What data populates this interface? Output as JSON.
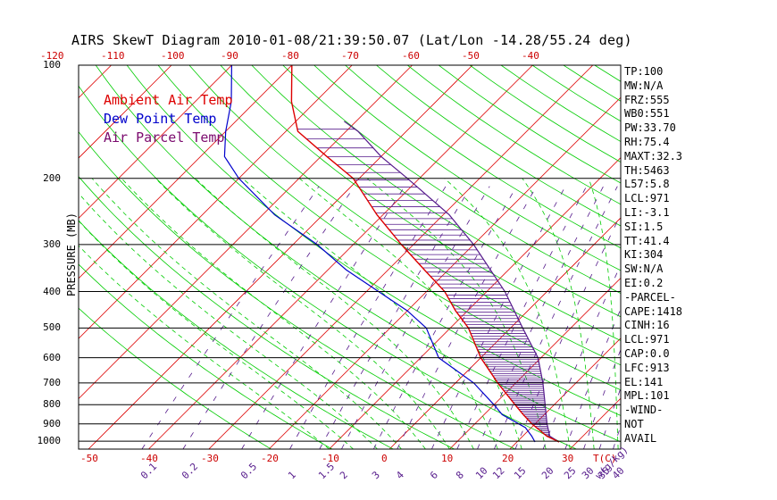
{
  "title": "AIRS SkewT Diagram 2010-01-08/21:39:50.07 (Lat/Lon -14.28/55.24 deg)",
  "y_axis_label": "PRESSURE (MB)",
  "legend": [
    {
      "label": "Ambient Air Temp",
      "color": "#dd0000"
    },
    {
      "label": "Dew Point Temp",
      "color": "#0000cc"
    },
    {
      "label": "Air Parcel Temp",
      "color": "#7b0a6e"
    }
  ],
  "indices": [
    "TP:100",
    "MW:N/A",
    "FRZ:555",
    "WB0:551",
    "PW:33.70",
    "RH:75.4",
    "MAXT:32.3",
    "TH:5463",
    "L57:5.8",
    "LCL:971",
    "LI:-3.1",
    "SI:1.5",
    "TT:41.4",
    "KI:304",
    "SW:N/A",
    "EI:0.2",
    "-PARCEL-",
    "CAPE:1418",
    "CINH:16",
    "LCL:971",
    "CAP:0.0",
    "LFC:913",
    "EL:141",
    "MPL:101",
    "-WIND-",
    "NOT",
    "AVAIL"
  ],
  "colors": {
    "dry_adiabat": "#00cc00",
    "moist_adiabat": "#00cc00",
    "isotherm": "#dd0000",
    "mixing_ratio": "#551a8b",
    "isobar": "#000000",
    "ambient": "#dd0000",
    "dewpoint": "#0000cc",
    "parcel": "#551a8b",
    "cape_hatch": "#551a8b"
  },
  "chart_data": {
    "type": "skew-t",
    "pressure_axis": {
      "label": "PRESSURE (MB)",
      "ticks": [
        100,
        200,
        300,
        400,
        500,
        600,
        700,
        800,
        900,
        1000
      ],
      "range": [
        1050,
        100
      ],
      "scale": "log"
    },
    "temp_axis_bottom": {
      "ticks": [
        -50,
        -40,
        -30,
        -20,
        -10,
        0,
        10,
        20,
        30
      ],
      "unit_label": "T(C)"
    },
    "temp_axis_top": {
      "ticks": [
        -120,
        -110,
        -100,
        -90,
        -80,
        -70,
        -60,
        -50,
        -40
      ]
    },
    "mixing_ratio_ticks": {
      "labels": [
        "0.1",
        "0.2",
        "0.5",
        "1",
        "1.5",
        "2",
        "3",
        "4",
        "6",
        "8",
        "10",
        "12",
        "15",
        "20",
        "25",
        "30",
        "35",
        "40"
      ],
      "values": [
        0.1,
        0.2,
        0.5,
        1,
        1.5,
        2,
        3,
        4,
        6,
        8,
        10,
        12,
        15,
        20,
        25,
        30,
        35,
        40
      ],
      "unit_label": "w(g/kg)"
    },
    "series": [
      {
        "name": "Ambient Air Temp",
        "points": [
          [
            1005,
            27
          ],
          [
            970,
            24
          ],
          [
            900,
            19.5
          ],
          [
            850,
            16.5
          ],
          [
            800,
            13.5
          ],
          [
            700,
            7
          ],
          [
            600,
            0
          ],
          [
            500,
            -7
          ],
          [
            450,
            -12
          ],
          [
            400,
            -17
          ],
          [
            350,
            -24
          ],
          [
            300,
            -32
          ],
          [
            250,
            -41
          ],
          [
            200,
            -51
          ],
          [
            175,
            -59
          ],
          [
            150,
            -68
          ],
          [
            125,
            -74
          ],
          [
            100,
            -80
          ]
        ]
      },
      {
        "name": "Dew Point Temp",
        "points": [
          [
            1005,
            23
          ],
          [
            970,
            21.5
          ],
          [
            920,
            19
          ],
          [
            850,
            13
          ],
          [
            800,
            10
          ],
          [
            700,
            3
          ],
          [
            600,
            -7
          ],
          [
            500,
            -14
          ],
          [
            450,
            -20
          ],
          [
            400,
            -28
          ],
          [
            350,
            -37
          ],
          [
            300,
            -46
          ],
          [
            250,
            -58
          ],
          [
            200,
            -70
          ],
          [
            175,
            -76
          ],
          [
            150,
            -80
          ],
          [
            125,
            -84
          ],
          [
            100,
            -90
          ]
        ]
      },
      {
        "name": "Air Parcel Temp",
        "points": [
          [
            1005,
            27
          ],
          [
            970,
            24.5
          ],
          [
            900,
            22
          ],
          [
            800,
            18.5
          ],
          [
            700,
            14.5
          ],
          [
            600,
            9.5
          ],
          [
            500,
            2
          ],
          [
            400,
            -7
          ],
          [
            300,
            -20
          ],
          [
            250,
            -29
          ],
          [
            200,
            -42
          ],
          [
            175,
            -50
          ],
          [
            150,
            -58
          ],
          [
            141,
            -62
          ]
        ]
      }
    ]
  }
}
